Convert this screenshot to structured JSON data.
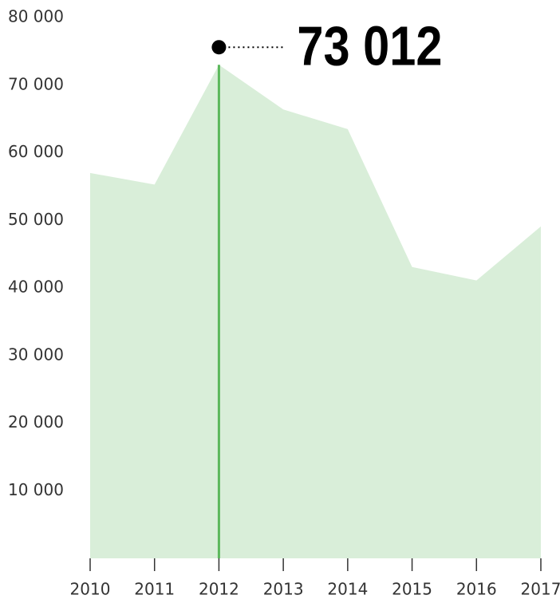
{
  "chart_data": {
    "type": "area",
    "categories": [
      "2010",
      "2011",
      "2012",
      "2013",
      "2014",
      "2015",
      "2016",
      "2017"
    ],
    "values": [
      57000,
      55300,
      73012,
      66400,
      63500,
      43100,
      41100,
      49100
    ],
    "value_labels": [
      null,
      null,
      "73 012",
      null,
      null,
      null,
      null,
      null
    ],
    "color": "#d9eed9",
    "highlight_color": "#5cb85c",
    "ylim": [
      0,
      80000
    ],
    "yticks": [
      {
        "value": 10000,
        "label": "10 000"
      },
      {
        "value": 20000,
        "label": "20 000"
      },
      {
        "value": 30000,
        "label": "30 000"
      },
      {
        "value": 40000,
        "label": "40 000"
      },
      {
        "value": 50000,
        "label": "50 000"
      },
      {
        "value": 60000,
        "label": "60 000"
      },
      {
        "value": 70000,
        "label": "70 000"
      },
      {
        "value": 80000,
        "label": "80 000"
      }
    ],
    "grid": false
  }
}
